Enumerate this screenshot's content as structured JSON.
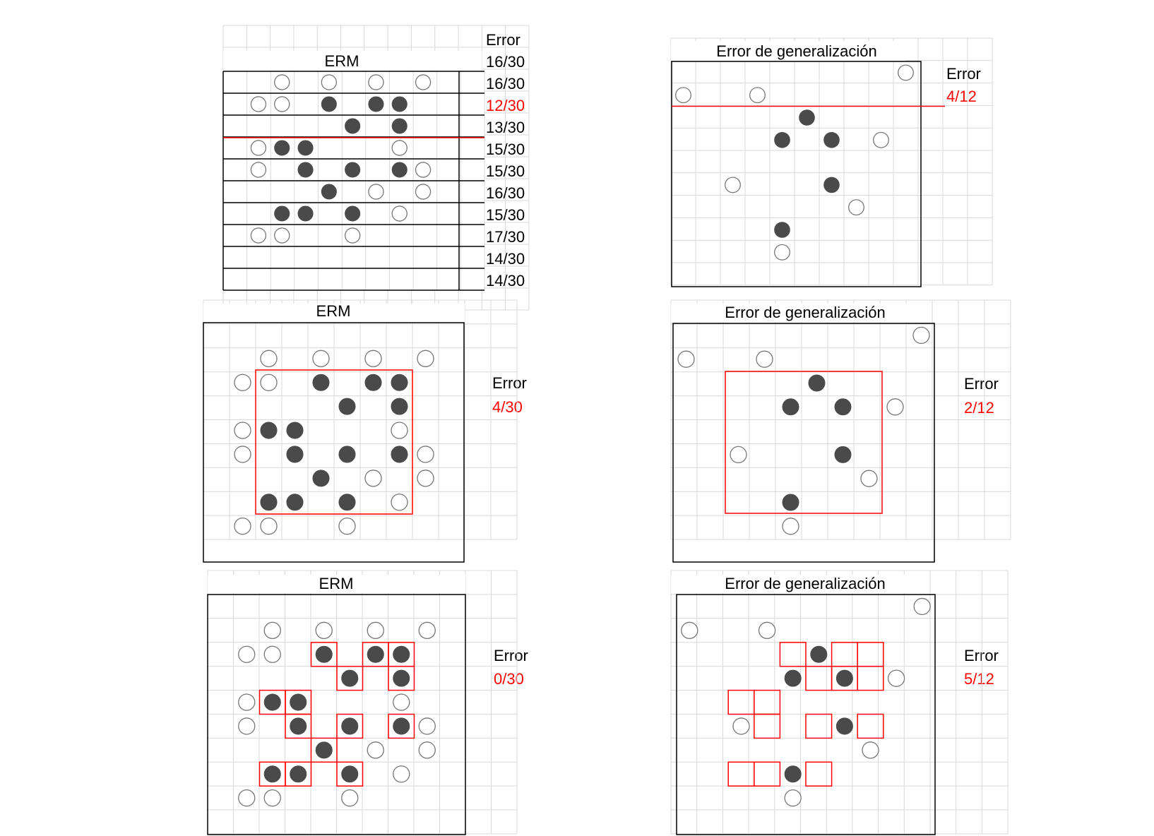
{
  "grid_color": "#d9d9d9",
  "frame_color": "#000000",
  "accent_color": "#ff0000",
  "point_fill": "#4a4a4a",
  "panels": [
    {
      "id": "p1-erm",
      "title": "ERM",
      "threshold_row": 4,
      "error_header": "Error",
      "row_errors": [
        "16/30",
        "16/30",
        "12/30",
        "13/30",
        "15/30",
        "15/30",
        "16/30",
        "15/30",
        "17/30",
        "14/30",
        "14/30"
      ],
      "best_row_error_index": 2,
      "points": [
        [
          3,
          2,
          0
        ],
        [
          5,
          2,
          0
        ],
        [
          7,
          2,
          0
        ],
        [
          9,
          2,
          0
        ],
        [
          2,
          3,
          0
        ],
        [
          3,
          3,
          0
        ],
        [
          5,
          3,
          1
        ],
        [
          7,
          3,
          1
        ],
        [
          8,
          3,
          1
        ],
        [
          6,
          4,
          1
        ],
        [
          8,
          4,
          1
        ],
        [
          2,
          5,
          0
        ],
        [
          3,
          5,
          1
        ],
        [
          4,
          5,
          1
        ],
        [
          8,
          5,
          0
        ],
        [
          2,
          6,
          0
        ],
        [
          4,
          6,
          1
        ],
        [
          6,
          6,
          1
        ],
        [
          8,
          6,
          1
        ],
        [
          9,
          6,
          0
        ],
        [
          5,
          7,
          1
        ],
        [
          7,
          7,
          0
        ],
        [
          9,
          7,
          0
        ],
        [
          3,
          8,
          1
        ],
        [
          4,
          8,
          1
        ],
        [
          6,
          8,
          1
        ],
        [
          8,
          8,
          0
        ],
        [
          2,
          9,
          0
        ],
        [
          3,
          9,
          0
        ],
        [
          6,
          9,
          0
        ]
      ]
    },
    {
      "id": "p2-gen",
      "title": "Error de generalización",
      "error_label": "Error",
      "error_value": "4/12",
      "points": [
        [
          9,
          1,
          0
        ],
        [
          0,
          2,
          0
        ],
        [
          3,
          2,
          0
        ],
        [
          5,
          3,
          1
        ],
        [
          4,
          4,
          1
        ],
        [
          6,
          4,
          1
        ],
        [
          8,
          4,
          0
        ],
        [
          2,
          6,
          0
        ],
        [
          6,
          6,
          1
        ],
        [
          7,
          7,
          0
        ],
        [
          4,
          8,
          1
        ],
        [
          4,
          9,
          0
        ]
      ]
    },
    {
      "id": "p3-erm",
      "title": "ERM",
      "error_label": "Error",
      "error_value": "4/30",
      "points": [
        [
          1,
          1,
          0
        ],
        [
          3,
          1,
          0
        ],
        [
          5,
          1,
          0
        ],
        [
          7,
          1,
          0
        ],
        [
          0,
          2,
          0
        ],
        [
          1,
          2,
          0
        ],
        [
          3,
          2,
          1
        ],
        [
          5,
          2,
          1
        ],
        [
          6,
          2,
          1
        ],
        [
          4,
          3,
          1
        ],
        [
          6,
          3,
          1
        ],
        [
          0,
          4,
          0
        ],
        [
          1,
          4,
          1
        ],
        [
          2,
          4,
          1
        ],
        [
          6,
          4,
          0
        ],
        [
          0,
          5,
          0
        ],
        [
          2,
          5,
          1
        ],
        [
          4,
          5,
          1
        ],
        [
          6,
          5,
          1
        ],
        [
          7,
          5,
          0
        ],
        [
          3,
          6,
          1
        ],
        [
          5,
          6,
          0
        ],
        [
          7,
          6,
          0
        ],
        [
          1,
          7,
          1
        ],
        [
          2,
          7,
          1
        ],
        [
          4,
          7,
          1
        ],
        [
          6,
          7,
          0
        ],
        [
          0,
          8,
          0
        ],
        [
          1,
          8,
          0
        ],
        [
          4,
          8,
          0
        ]
      ]
    },
    {
      "id": "p4-gen",
      "title": "Error de generalización",
      "error_label": "Error",
      "error_value": "2/12",
      "points": [
        [
          9,
          0,
          0
        ],
        [
          0,
          1,
          0
        ],
        [
          3,
          1,
          0
        ],
        [
          5,
          2,
          1
        ],
        [
          4,
          3,
          1
        ],
        [
          6,
          3,
          1
        ],
        [
          8,
          3,
          0
        ],
        [
          2,
          5,
          0
        ],
        [
          6,
          5,
          1
        ],
        [
          7,
          6,
          0
        ],
        [
          4,
          7,
          1
        ],
        [
          4,
          8,
          0
        ]
      ]
    },
    {
      "id": "p5-erm",
      "title": "ERM",
      "error_label": "Error",
      "error_value": "0/30",
      "points": [
        [
          1,
          1,
          0
        ],
        [
          3,
          1,
          0
        ],
        [
          5,
          1,
          0
        ],
        [
          7,
          1,
          0
        ],
        [
          0,
          2,
          0
        ],
        [
          1,
          2,
          0
        ],
        [
          3,
          2,
          1
        ],
        [
          5,
          2,
          1
        ],
        [
          6,
          2,
          1
        ],
        [
          4,
          3,
          1
        ],
        [
          6,
          3,
          1
        ],
        [
          0,
          4,
          0
        ],
        [
          1,
          4,
          1
        ],
        [
          2,
          4,
          1
        ],
        [
          6,
          4,
          0
        ],
        [
          0,
          5,
          0
        ],
        [
          2,
          5,
          1
        ],
        [
          4,
          5,
          1
        ],
        [
          6,
          5,
          1
        ],
        [
          7,
          5,
          0
        ],
        [
          3,
          6,
          1
        ],
        [
          5,
          6,
          0
        ],
        [
          7,
          6,
          0
        ],
        [
          1,
          7,
          1
        ],
        [
          2,
          7,
          1
        ],
        [
          4,
          7,
          1
        ],
        [
          6,
          7,
          0
        ],
        [
          0,
          8,
          0
        ],
        [
          1,
          8,
          0
        ],
        [
          4,
          8,
          0
        ]
      ]
    },
    {
      "id": "p6-gen",
      "title": "Error de generalización",
      "error_label": "Error",
      "error_value": "5/12",
      "points": [
        [
          9,
          0,
          0
        ],
        [
          0,
          1,
          0
        ],
        [
          3,
          1,
          0
        ],
        [
          5,
          2,
          1
        ],
        [
          4,
          3,
          1
        ],
        [
          6,
          3,
          1
        ],
        [
          8,
          3,
          0
        ],
        [
          2,
          5,
          0
        ],
        [
          6,
          5,
          1
        ],
        [
          7,
          6,
          0
        ],
        [
          4,
          7,
          1
        ],
        [
          4,
          8,
          0
        ]
      ]
    }
  ]
}
